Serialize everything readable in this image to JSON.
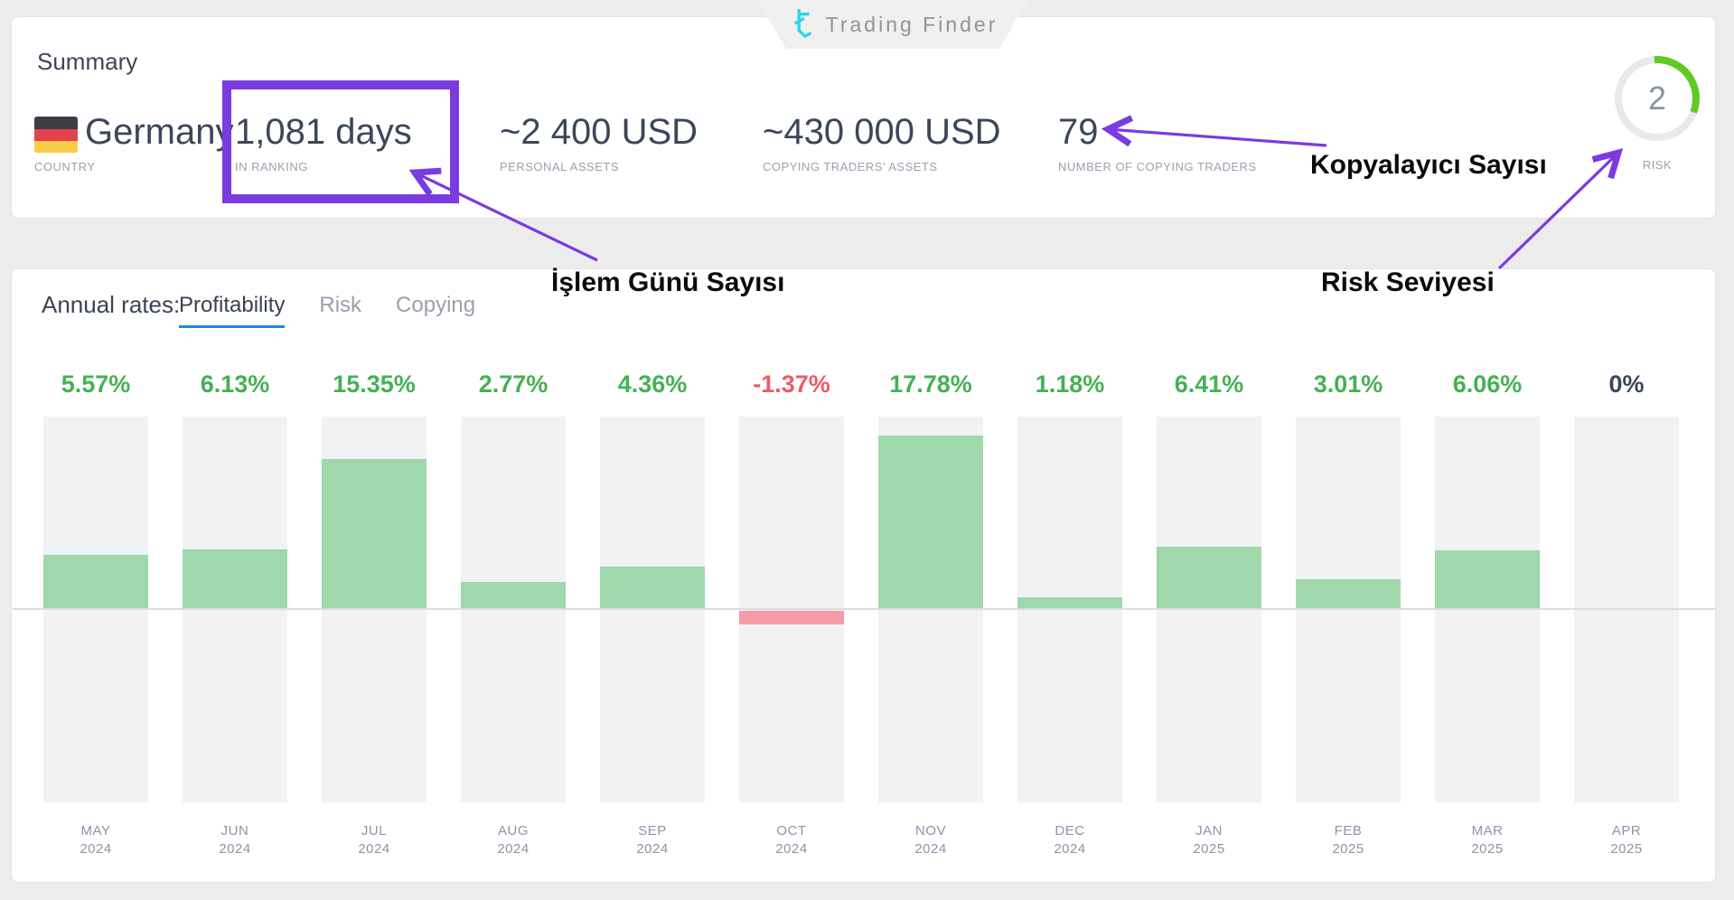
{
  "logo": {
    "text": "Trading Finder"
  },
  "summary": {
    "title": "Summary",
    "stats": [
      {
        "value": "Germany",
        "label": "COUNTRY"
      },
      {
        "value": "1,081 days",
        "label": "IN RANKING",
        "highlighted": true
      },
      {
        "value": "~2 400 USD",
        "label": "PERSONAL ASSETS"
      },
      {
        "value": "~430 000 USD",
        "label": "COPYING TRADERS’ ASSETS"
      },
      {
        "value": "79",
        "label": "NUMBER OF COPYING TRADERS"
      }
    ],
    "risk": {
      "value": "2",
      "label": "RISK",
      "gauge_color": "#5ecb20",
      "ring_color": "#e9e9e9"
    }
  },
  "annotations": {
    "in_ranking": "İşlem Günü Sayısı",
    "copiers": "Kopyalayıcı Sayısı",
    "risk": "Risk Seviyesi",
    "accent_color": "#7b3be0"
  },
  "annual_rates": {
    "label": "Annual rates:",
    "tabs": [
      {
        "label": "Profitability",
        "active": true
      },
      {
        "label": "Risk",
        "active": false
      },
      {
        "label": "Copying",
        "active": false
      }
    ]
  },
  "chart_data": {
    "type": "bar",
    "title": "Annual rates — Profitability",
    "categories": [
      "MAY 2024",
      "JUN 2024",
      "JUL 2024",
      "AUG 2024",
      "SEP 2024",
      "OCT 2024",
      "NOV 2024",
      "DEC 2024",
      "JAN 2025",
      "FEB 2025",
      "MAR 2025",
      "APR 2025"
    ],
    "values": [
      5.57,
      6.13,
      15.35,
      2.77,
      4.36,
      -1.37,
      17.78,
      1.18,
      6.41,
      3.01,
      6.06,
      0
    ],
    "labels": [
      "5.57%",
      "6.13%",
      "15.35%",
      "2.77%",
      "4.36%",
      "-1.37%",
      "17.78%",
      "1.18%",
      "6.41%",
      "3.01%",
      "6.06%",
      "0%"
    ],
    "xlabel": "",
    "ylabel": "",
    "ylim": [
      -19.8,
      19.7
    ],
    "grid": false,
    "legend": "none",
    "colors": {
      "positive_bar": "#9ed8ab",
      "negative_bar": "#f59aa7",
      "positive_label": "#45b153",
      "negative_label": "#ee5a66",
      "zero_label": "#3b4759",
      "track": "#f0f2f4"
    }
  }
}
